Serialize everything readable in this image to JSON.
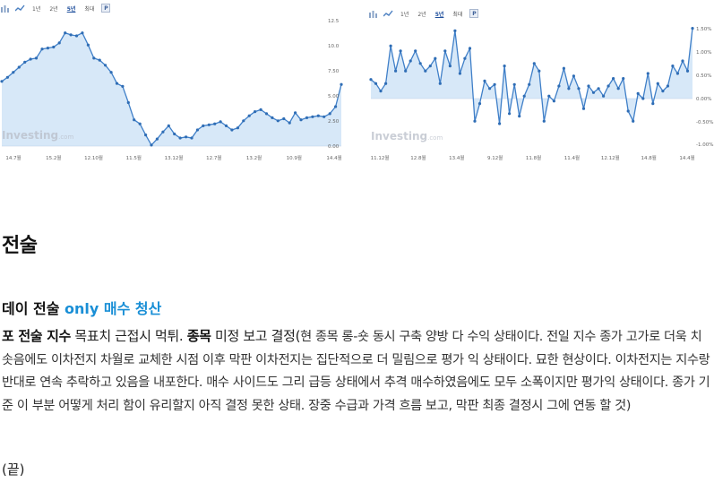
{
  "toolbar": {
    "periods": [
      "1년",
      "2년",
      "5년",
      "최대"
    ],
    "active_period": "5년",
    "p_button": "P"
  },
  "watermark": {
    "brand": "Investing",
    "suffix": ".com"
  },
  "chart_data": [
    {
      "type": "area",
      "x_labels": [
        "14.7월",
        "15.2월",
        "12.10월",
        "11.5월",
        "13.12월",
        "12.7월",
        "13.2월",
        "10.9월",
        "14.4월"
      ],
      "y_ticks": [
        "12.5",
        "10.0",
        "7.50",
        "5.00",
        "2.50",
        "0.00"
      ],
      "ylim": [
        0,
        12.5
      ],
      "values": [
        6.4,
        6.8,
        7.3,
        7.8,
        8.3,
        8.6,
        8.7,
        9.6,
        9.7,
        9.8,
        10.2,
        11.2,
        11.0,
        10.9,
        11.2,
        10.0,
        8.7,
        8.5,
        8.0,
        7.3,
        6.2,
        5.9,
        4.3,
        2.6,
        2.2,
        1.1,
        0.1,
        0.7,
        1.4,
        2.0,
        1.2,
        0.8,
        0.9,
        0.8,
        1.6,
        2.0,
        2.1,
        2.2,
        2.4,
        2.0,
        1.6,
        1.8,
        2.5,
        3.0,
        3.4,
        3.6,
        3.2,
        2.8,
        2.5,
        2.7,
        2.3,
        3.3,
        2.6,
        2.8,
        2.9,
        3.0,
        2.9,
        3.2,
        3.9,
        6.1
      ],
      "grid": false,
      "line_color": "#3f7fc8",
      "fill_color": "#d7e8f8"
    },
    {
      "type": "area",
      "x_labels": [
        "11.12월",
        "12.8월",
        "13.4월",
        "9.12월",
        "11.8월",
        "11.4월",
        "12.12월",
        "14.8월",
        "14.4월"
      ],
      "y_ticks": [
        "1.50%",
        "1.00%",
        "0.50%",
        "0.00%",
        "-0.50%",
        "-1.00%"
      ],
      "ylim": [
        -1.0,
        1.5
      ],
      "values": [
        0.38,
        0.3,
        0.15,
        0.3,
        1.05,
        0.55,
        0.95,
        0.55,
        0.75,
        0.95,
        0.7,
        0.55,
        0.65,
        0.8,
        0.3,
        0.95,
        0.65,
        1.35,
        0.5,
        0.8,
        1.0,
        -0.45,
        -0.1,
        0.35,
        0.2,
        0.28,
        -0.5,
        0.65,
        -0.3,
        0.28,
        -0.35,
        0.05,
        0.28,
        0.7,
        0.55,
        -0.45,
        0.05,
        -0.05,
        0.25,
        0.6,
        0.2,
        0.45,
        0.2,
        -0.2,
        0.25,
        0.12,
        0.2,
        0.05,
        0.25,
        0.4,
        0.2,
        0.4,
        -0.25,
        -0.45,
        0.1,
        0.0,
        0.5,
        -0.1,
        0.3,
        0.15,
        0.25,
        0.65,
        0.5,
        0.75,
        0.55,
        1.4
      ],
      "grid": false,
      "line_color": "#3f7fc8",
      "fill_color": "#d7e8f8"
    }
  ],
  "section": {
    "title": "전술"
  },
  "subhead": {
    "prefix": "데이 전술 ",
    "accent": "only 매수 청산"
  },
  "body": {
    "bold1": "포 전술 지수",
    "text1": " 목표치 근접시 먹튀. ",
    "bold2": "종목",
    "text2": " 미정 보고 결정(",
    "text3": "현 종목 롱-숏 동시 구축 양방 다 수익 상태이다. 전일 지수 종가 고가로 더욱 치솟음에도 이차전지 차월로 교체한 시점 이후 막판 이차전지는 집단적으로 더 밀림으로 평가 익 상태이다. 묘한 현상이다. 이차전지는 지수랑 반대로 연속 추락하고 있음을 내포한다. 매수 사이드도 그리 급등 상태에서 추격 매수하였음에도 모두 소폭이지만 평가익 상태이다. 종가 기준 이 부분 어떻게 처리 함이 유리할지 아직 결정 못한 상태. 장중 수급과 가격 흐름 보고, 막판 최종 결정시 그에 연동 할 것)",
    "end": "(끝)"
  }
}
